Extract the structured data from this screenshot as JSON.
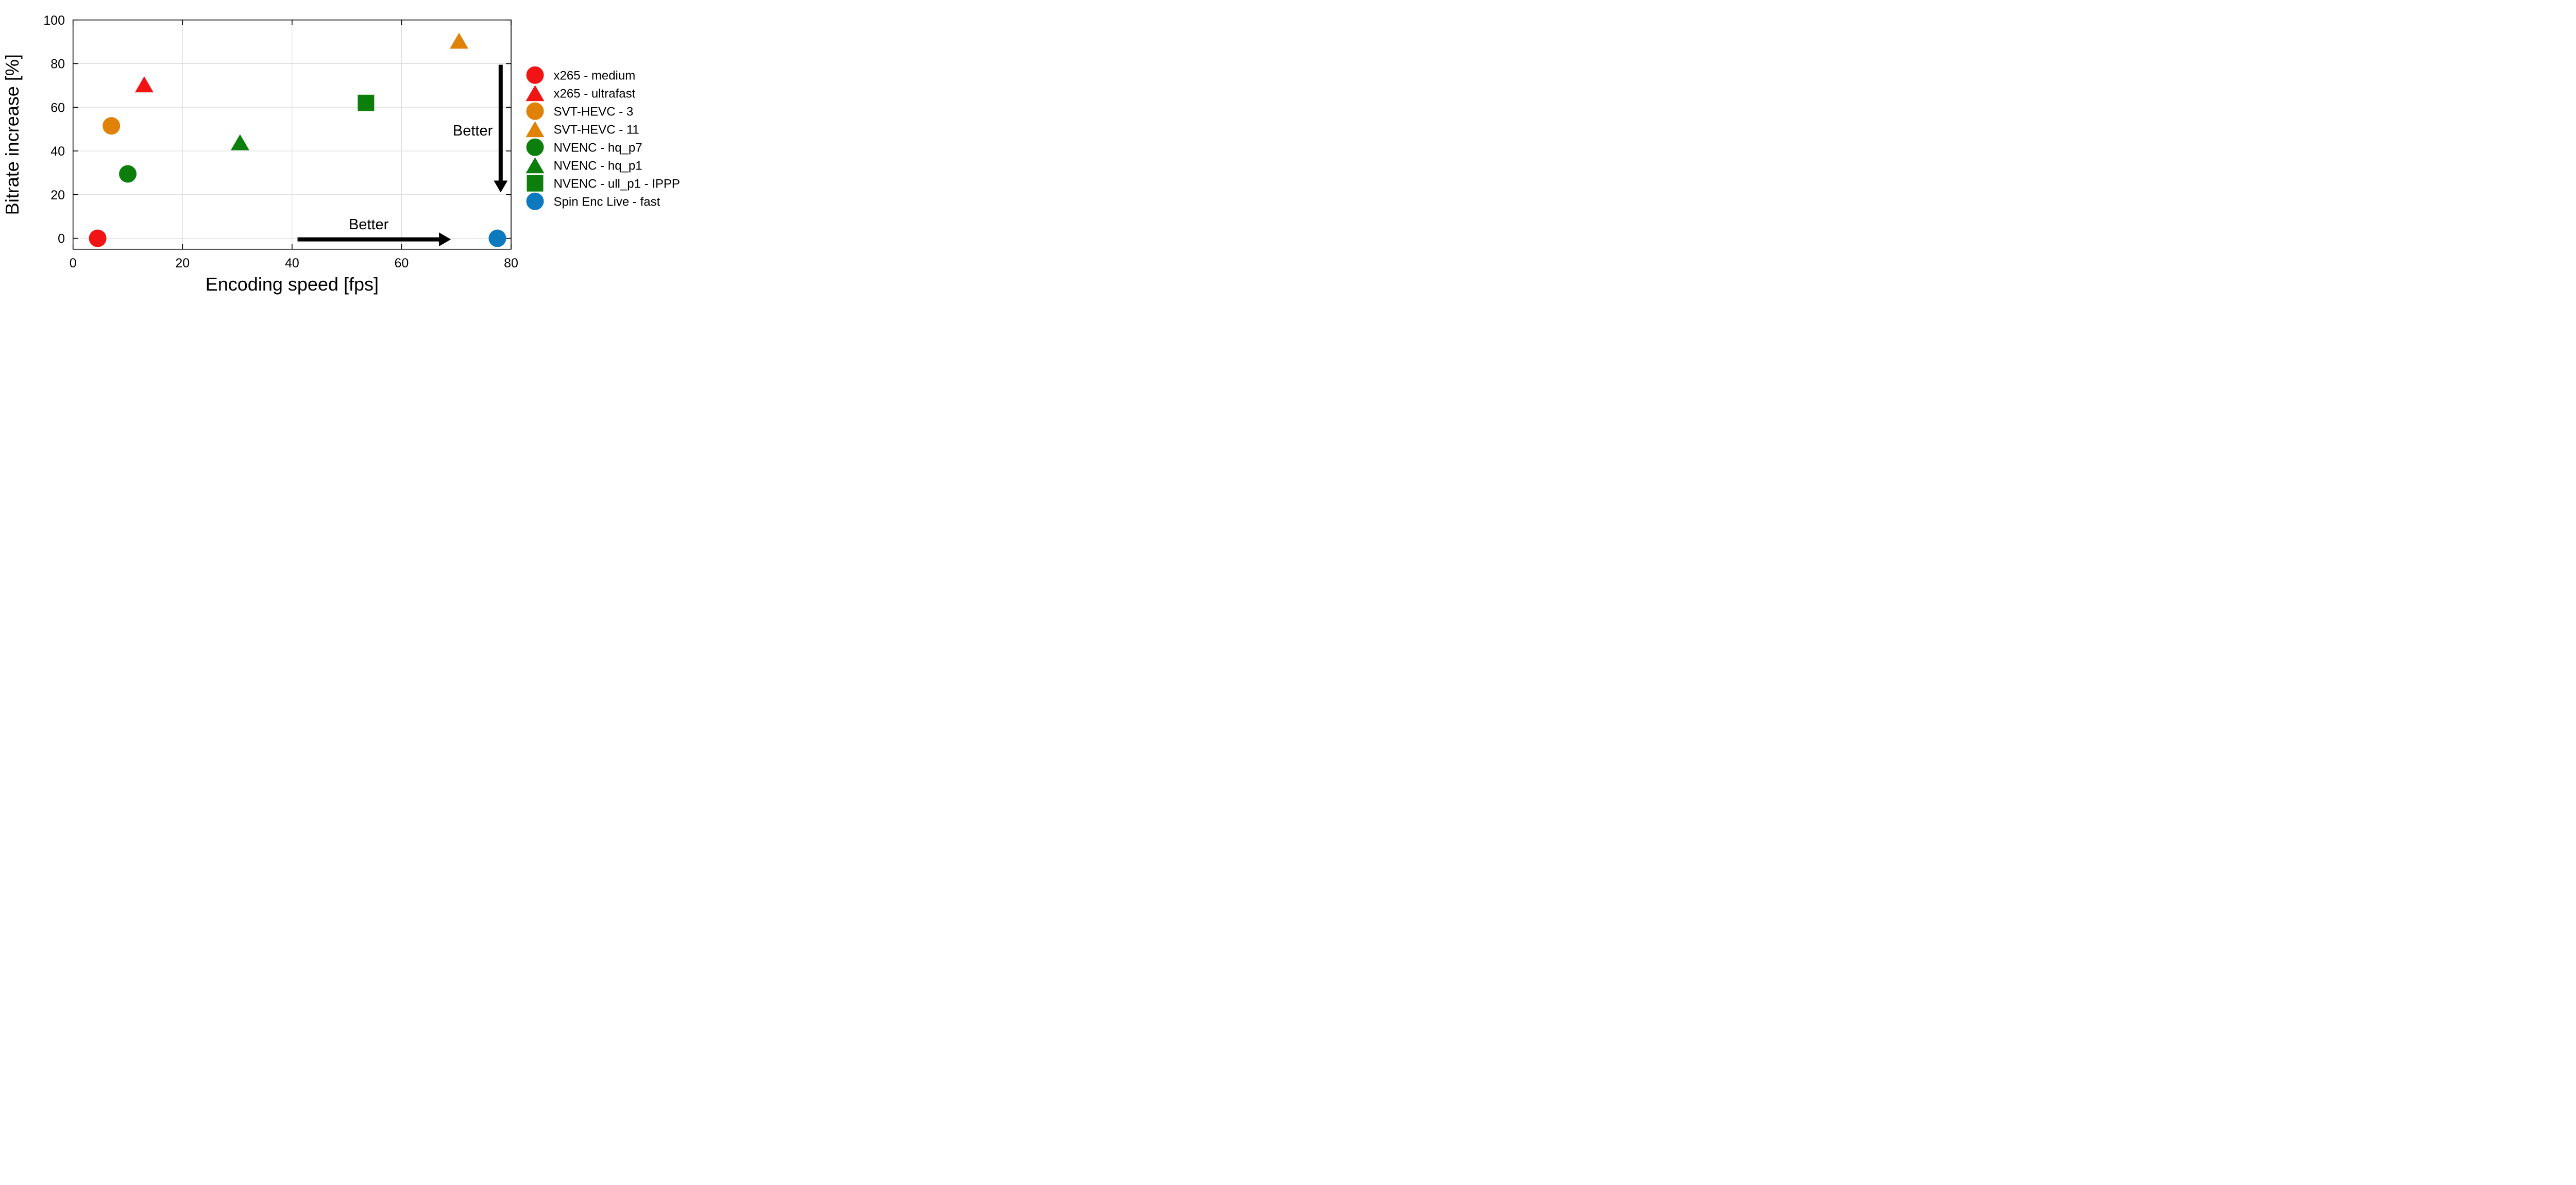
{
  "figure": {
    "background": "#ffffff"
  },
  "chart_data": {
    "type": "scatter",
    "title": "",
    "xlabel": "Encoding speed [fps]",
    "ylabel": "Bitrate increase [%]",
    "xlim": [
      0,
      80
    ],
    "ylim": [
      -5,
      100
    ],
    "xticks": [
      0,
      20,
      40,
      60,
      80
    ],
    "yticks": [
      0,
      20,
      40,
      60,
      80,
      100
    ],
    "grid": true,
    "legend_position": "right-outside",
    "series": [
      {
        "name": "x265 - medium",
        "marker": "circle",
        "color": "#f01414",
        "x": 4.5,
        "y": 0
      },
      {
        "name": "x265 - ultrafast",
        "marker": "triangle",
        "color": "#f01414",
        "x": 13,
        "y": 70.5
      },
      {
        "name": "SVT-HEVC - 3",
        "marker": "circle",
        "color": "#e08208",
        "x": 7,
        "y": 51.5
      },
      {
        "name": "SVT-HEVC - 11",
        "marker": "triangle",
        "color": "#e08208",
        "x": 70.5,
        "y": 90.5
      },
      {
        "name": "NVENC - hq_p7",
        "marker": "circle",
        "color": "#0b7e0b",
        "x": 10,
        "y": 29.5
      },
      {
        "name": "NVENC - hq_p1",
        "marker": "triangle",
        "color": "#0b7e0b",
        "x": 30.5,
        "y": 44
      },
      {
        "name": "NVENC - ull_p1 - IPPP",
        "marker": "square",
        "color": "#0b7e0b",
        "x": 53.5,
        "y": 62
      },
      {
        "name": "Spin Enc Live - fast",
        "marker": "circle",
        "color": "#0d79be",
        "x": 77.5,
        "y": 0
      }
    ],
    "annotations": [
      {
        "id": "better-right",
        "label": "Better",
        "direction": "right",
        "x1": 41,
        "x2": 69,
        "y": -0.5,
        "label_x": 54,
        "label_y": 6.5
      },
      {
        "id": "better-down",
        "label": "Better",
        "direction": "down",
        "x": 78.1,
        "y1": 79.5,
        "y2": 21,
        "label_x": 73,
        "label_y": 49.5
      }
    ],
    "colors": {
      "grid": "#d9d9d9",
      "axis": "#000000",
      "text": "#000000",
      "arrow": "#000000"
    }
  }
}
